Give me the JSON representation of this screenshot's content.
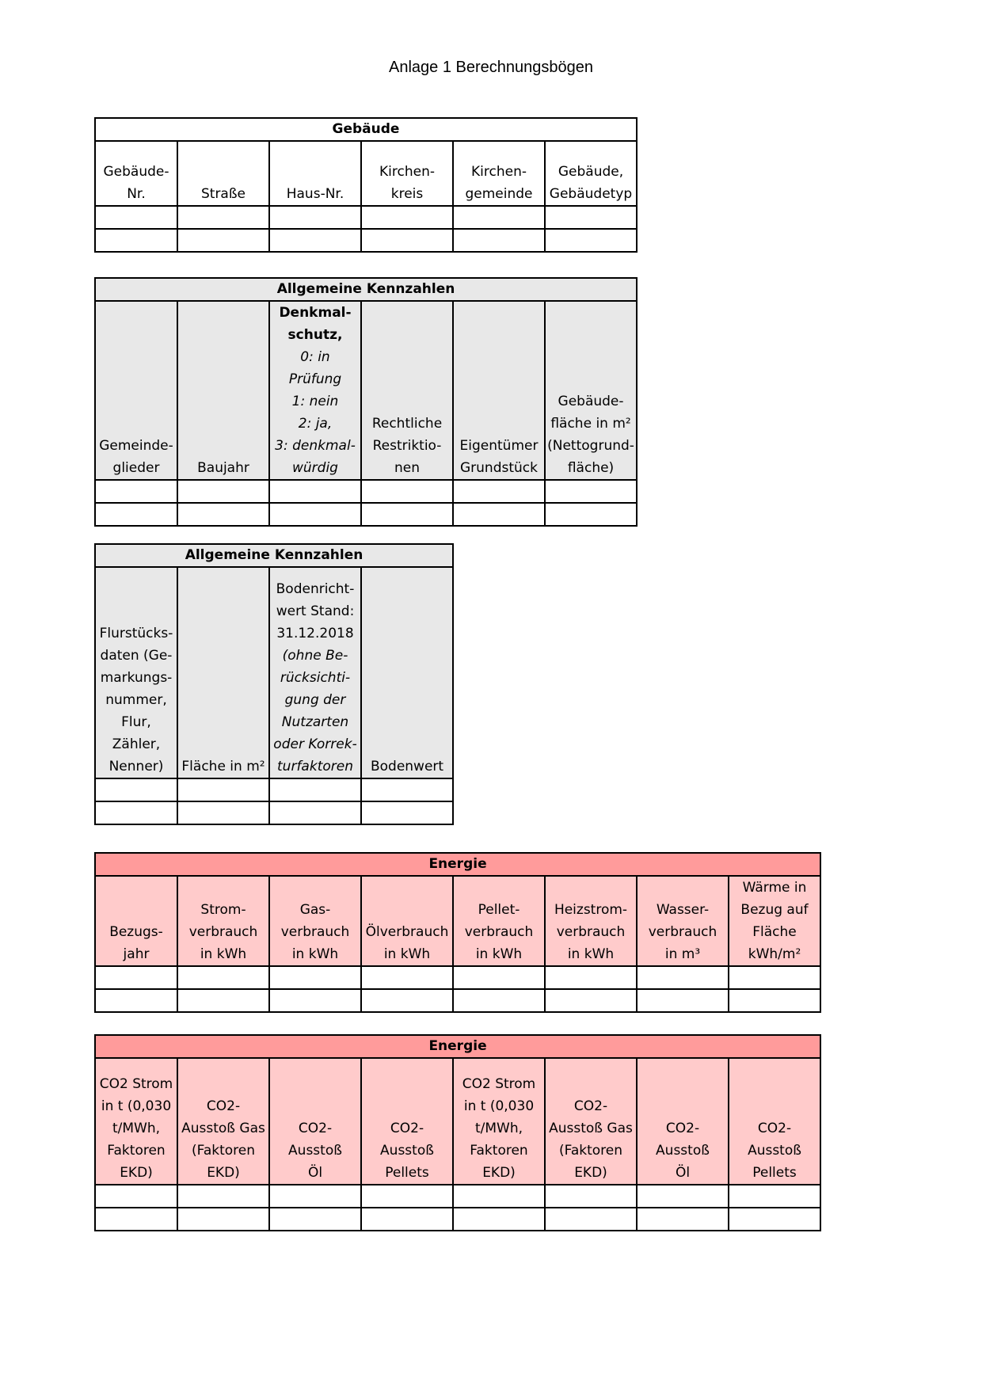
{
  "page": {
    "title": "Anlage 1 Berechnungsbögen"
  },
  "t1": {
    "title": "Gebäude",
    "headers": [
      [
        "Gebäude-",
        "Nr."
      ],
      [
        "Straße"
      ],
      [
        "Haus-Nr."
      ],
      [
        "Kirchen-",
        "kreis"
      ],
      [
        "Kirchen-",
        "gemeinde"
      ],
      [
        "Gebäude,",
        "Gebäudetyp"
      ]
    ]
  },
  "t2": {
    "title": "Allgemeine Kennzahlen",
    "col1": [
      "Gemeinde-",
      "glieder"
    ],
    "col2": [
      "Baujahr"
    ],
    "col3_bold": [
      "Denkmal-",
      "schutz,"
    ],
    "col3_italic": [
      "0: in",
      "Prüfung",
      "1: nein",
      "2: ja,",
      "3: denkmal-",
      "würdig"
    ],
    "col4": [
      "Rechtliche",
      "Restriktio-",
      "nen"
    ],
    "col5": [
      "Eigentümer",
      "Grundstück"
    ],
    "col6": [
      "Gebäude-",
      "fläche in m²",
      "(Nettogrund-",
      "fläche)"
    ]
  },
  "t3": {
    "title": "Allgemeine Kennzahlen",
    "col1": [
      "Flurstücks-",
      "daten (Ge-",
      "markungs-",
      "nummer,",
      "Flur,",
      "Zähler,",
      "Nenner)"
    ],
    "col2": [
      "Fläche in m²"
    ],
    "col3_normal": [
      "Bodenricht-",
      "wert Stand:",
      "31.12.2018"
    ],
    "col3_italic": [
      "(ohne Be-",
      "rücksichti-",
      "gung der",
      "Nutzarten",
      "oder Korrek-",
      "turfaktoren"
    ],
    "col4": [
      "Bodenwert"
    ]
  },
  "t4": {
    "title": "Energie",
    "headers": [
      [
        "Bezugs-",
        "jahr"
      ],
      [
        "Strom-",
        "verbrauch",
        "in kWh"
      ],
      [
        "Gas-",
        "verbrauch",
        "in kWh"
      ],
      [
        "Ölverbrauch",
        "in kWh"
      ],
      [
        "Pellet-",
        "verbrauch",
        "in kWh"
      ],
      [
        "Heizstrom-",
        "verbrauch",
        "in kWh"
      ],
      [
        "Wasser-",
        "verbrauch",
        "in m³"
      ],
      [
        "Wärme in",
        "Bezug auf",
        "Fläche",
        "kWh/m²"
      ]
    ]
  },
  "t5": {
    "title": "Energie",
    "headers": [
      [
        "CO2 Strom",
        "in t (0,030",
        "t/MWh,",
        "Faktoren",
        "EKD)"
      ],
      [
        "CO2-",
        "Ausstoß Gas",
        "(Faktoren",
        "EKD)"
      ],
      [
        "CO2-",
        "Ausstoß",
        "Öl"
      ],
      [
        "CO2-",
        "Ausstoß",
        "Pellets"
      ],
      [
        "CO2 Strom",
        "in t (0,030",
        "t/MWh,",
        "Faktoren",
        "EKD)"
      ],
      [
        "CO2-",
        "Ausstoß Gas",
        "(Faktoren",
        "EKD)"
      ],
      [
        "CO2-",
        "Ausstoß",
        "Öl"
      ],
      [
        "CO2-",
        "Ausstoß",
        "Pellets"
      ]
    ]
  }
}
